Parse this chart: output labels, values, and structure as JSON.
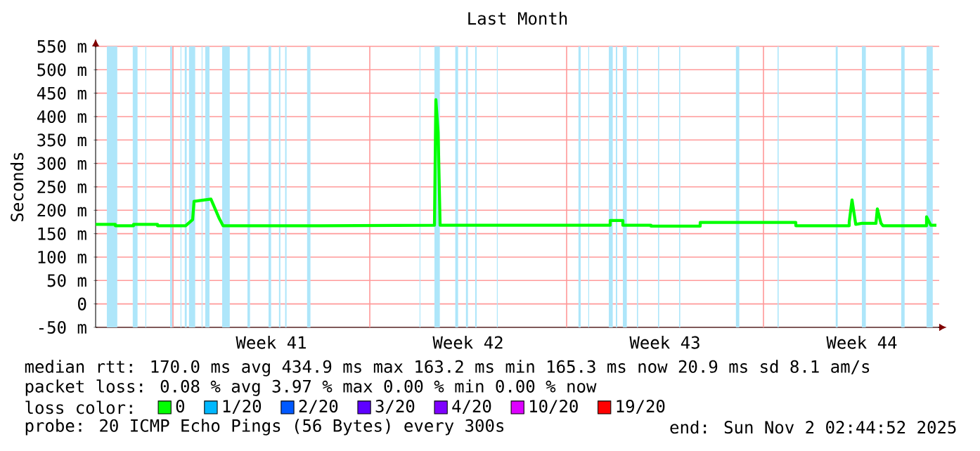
{
  "chart_data": {
    "type": "line",
    "title": "Last Month",
    "ylabel": "Seconds",
    "legend_title": "loss color:",
    "legend": "bottom",
    "grid": true,
    "xlim": [
      "2025-10-03T06:00",
      "2025-11-02T06:00"
    ],
    "ylim": [
      -50,
      550
    ],
    "xticks": [
      {
        "value": "2025-10-06T00:00",
        "label": null
      },
      {
        "value": "2025-10-09T12:00",
        "label": "Week 41"
      },
      {
        "value": "2025-10-13T00:00",
        "label": null
      },
      {
        "value": "2025-10-16T12:00",
        "label": "Week 42"
      },
      {
        "value": "2025-10-20T00:00",
        "label": null
      },
      {
        "value": "2025-10-23T12:00",
        "label": "Week 43"
      },
      {
        "value": "2025-10-27T00:00",
        "label": null
      },
      {
        "value": "2025-10-30T12:00",
        "label": "Week 44"
      }
    ],
    "yticks": [
      {
        "value": -50,
        "label": "-50 m"
      },
      0,
      {
        "value": 50,
        "label": "50 m"
      },
      {
        "value": 100,
        "label": "100 m"
      },
      {
        "value": 150,
        "label": "150 m"
      },
      {
        "value": 200,
        "label": "200 m"
      },
      {
        "value": 250,
        "label": "250 m"
      },
      {
        "value": 300,
        "label": "300 m"
      },
      {
        "value": 350,
        "label": "350 m"
      },
      {
        "value": 400,
        "label": "400 m"
      },
      {
        "value": 450,
        "label": "450 m"
      },
      {
        "value": 500,
        "label": "500 m"
      },
      {
        "value": 550,
        "label": "550 m"
      }
    ],
    "series": [
      {
        "name": "0",
        "color": "#00ff00",
        "x": [
          "2025-10-03T06:00",
          "2025-10-03T22:48",
          "2025-10-03T22:48",
          "2025-10-04T14:24",
          "2025-10-04T14:24",
          "2025-10-05T10:48",
          "2025-10-05T10:48",
          "2025-10-06T10:48",
          "2025-10-06T16:48",
          "2025-10-06T18:00",
          "2025-10-07T08:24",
          "2025-10-07T15:36",
          "2025-10-07T18:45",
          "2025-10-11T06:00",
          "2025-10-15T07:12",
          "2025-10-15T08:24",
          "2025-10-15T10:20",
          "2025-10-15T12:00",
          "2025-10-18T06:00",
          "2025-10-21T13:12",
          "2025-10-21T13:12",
          "2025-10-22T00:00",
          "2025-10-22T00:00",
          "2025-10-23T00:00",
          "2025-10-23T00:00",
          "2025-10-24T18:00",
          "2025-10-24T18:00",
          "2025-10-28T03:36",
          "2025-10-28T03:36",
          "2025-10-30T01:12",
          "2025-10-30T01:12",
          "2025-10-30T03:36",
          "2025-10-30T06:45",
          "2025-10-30T12:00",
          "2025-10-31T00:00",
          "2025-10-31T01:12",
          "2025-10-31T04:20",
          "2025-10-31T06:00",
          "2025-11-01T19:12",
          "2025-11-01T19:12",
          "2025-11-01T22:48",
          "2025-11-02T03:36"
        ],
        "values": [
          170,
          170,
          167,
          167,
          170,
          170,
          167,
          167,
          180,
          219,
          224,
          182,
          167,
          167,
          168,
          436,
          366,
          168,
          168,
          168,
          178,
          178,
          168,
          168,
          166,
          166,
          174,
          174,
          167,
          167,
          175,
          222,
          170,
          172,
          172,
          203,
          172,
          167,
          167,
          186,
          168,
          168
        ]
      },
      {
        "name": "1/20",
        "color": "#00b8ff",
        "values": [
          null
        ]
      },
      {
        "name": "2/20",
        "color": "#0059ff",
        "values": [
          null
        ]
      },
      {
        "name": "3/20",
        "color": "#5e00ff",
        "values": [
          null
        ]
      },
      {
        "name": "4/20",
        "color": "#7e00ff",
        "values": [
          null
        ]
      },
      {
        "name": "10/20",
        "color": "#dd00ff",
        "values": [
          null
        ]
      },
      {
        "name": "19/20",
        "color": "#ff0000",
        "values": [
          null
        ]
      }
    ],
    "bands": [
      {
        "axis": "x",
        "from": "2025-10-03T15:36",
        "to": "2025-10-04T00:29",
        "color": "#aee6fa"
      },
      {
        "axis": "x",
        "from": "2025-10-04T13:41",
        "to": "2025-10-04T17:46",
        "color": "#aee6fa"
      },
      {
        "axis": "x",
        "from": "2025-10-05T00:29",
        "to": "2025-10-05T01:12",
        "color": "#aee6fa"
      },
      {
        "axis": "x",
        "from": "2025-10-05T21:36",
        "to": "2025-10-05T23:17",
        "color": "#aee6fa"
      },
      {
        "axis": "x",
        "from": "2025-10-06T06:29",
        "to": "2025-10-06T07:12",
        "color": "#aee6fa"
      },
      {
        "axis": "x",
        "from": "2025-10-06T10:05",
        "to": "2025-10-06T11:46",
        "color": "#aee6fa"
      },
      {
        "axis": "x",
        "from": "2025-10-06T13:41",
        "to": "2025-10-06T18:58",
        "color": "#aee6fa"
      },
      {
        "axis": "x",
        "from": "2025-10-07T00:29",
        "to": "2025-10-07T01:12",
        "color": "#aee6fa"
      },
      {
        "axis": "x",
        "from": "2025-10-07T03:36",
        "to": "2025-10-07T07:12",
        "color": "#aee6fa"
      },
      {
        "axis": "x",
        "from": "2025-10-07T18:00",
        "to": "2025-10-08T00:29",
        "color": "#aee6fa"
      },
      {
        "axis": "x",
        "from": "2025-10-08T15:36",
        "to": "2025-10-08T17:46",
        "color": "#aee6fa"
      },
      {
        "axis": "x",
        "from": "2025-10-09T09:36",
        "to": "2025-10-09T11:46",
        "color": "#aee6fa"
      },
      {
        "axis": "x",
        "from": "2025-10-09T18:29",
        "to": "2025-10-09T19:41",
        "color": "#aee6fa"
      },
      {
        "axis": "x",
        "from": "2025-10-09T23:46",
        "to": "2025-10-10T00:58",
        "color": "#aee6fa"
      },
      {
        "axis": "x",
        "from": "2025-10-10T18:29",
        "to": "2025-10-10T21:22",
        "color": "#aee6fa"
      },
      {
        "axis": "x",
        "from": "2025-10-14T18:29",
        "to": "2025-10-14T19:12",
        "color": "#aee6fa"
      },
      {
        "axis": "x",
        "from": "2025-10-15T07:12",
        "to": "2025-10-15T11:46",
        "color": "#aee6fa"
      },
      {
        "axis": "x",
        "from": "2025-10-16T00:58",
        "to": "2025-10-16T03:22",
        "color": "#aee6fa"
      },
      {
        "axis": "x",
        "from": "2025-10-16T10:05",
        "to": "2025-10-16T11:46",
        "color": "#aee6fa"
      },
      {
        "axis": "x",
        "from": "2025-10-16T18:00",
        "to": "2025-10-16T19:12",
        "color": "#aee6fa"
      },
      {
        "axis": "x",
        "from": "2025-10-17T12:29",
        "to": "2025-10-17T13:12",
        "color": "#aee6fa"
      },
      {
        "axis": "x",
        "from": "2025-10-20T10:05",
        "to": "2025-10-20T12:00",
        "color": "#aee6fa"
      },
      {
        "axis": "x",
        "from": "2025-10-20T18:29",
        "to": "2025-10-20T19:12",
        "color": "#aee6fa"
      },
      {
        "axis": "x",
        "from": "2025-10-21T12:00",
        "to": "2025-10-21T15:22",
        "color": "#aee6fa"
      },
      {
        "axis": "x",
        "from": "2025-10-21T18:00",
        "to": "2025-10-21T19:12",
        "color": "#aee6fa"
      },
      {
        "axis": "x",
        "from": "2025-10-22T00:00",
        "to": "2025-10-22T03:22",
        "color": "#aee6fa"
      },
      {
        "axis": "x",
        "from": "2025-10-22T12:00",
        "to": "2025-10-22T12:58",
        "color": "#aee6fa"
      },
      {
        "axis": "x",
        "from": "2025-10-23T06:00",
        "to": "2025-10-23T06:58",
        "color": "#aee6fa"
      },
      {
        "axis": "x",
        "from": "2025-10-24T00:00",
        "to": "2025-10-24T00:58",
        "color": "#aee6fa"
      },
      {
        "axis": "x",
        "from": "2025-10-26T00:29",
        "to": "2025-10-26T03:22",
        "color": "#aee6fa"
      },
      {
        "axis": "x",
        "from": "2025-10-27T12:00",
        "to": "2025-10-27T12:58",
        "color": "#aee6fa"
      },
      {
        "axis": "x",
        "from": "2025-10-29T13:41",
        "to": "2025-10-29T15:22",
        "color": "#aee6fa"
      },
      {
        "axis": "x",
        "from": "2025-10-30T12:00",
        "to": "2025-10-30T15:22",
        "color": "#aee6fa"
      },
      {
        "axis": "x",
        "from": "2025-10-31T21:36",
        "to": "2025-11-01T00:29",
        "color": "#aee6fa"
      },
      {
        "axis": "x",
        "from": "2025-11-01T19:12",
        "to": "2025-11-02T00:29",
        "color": "#aee6fa"
      }
    ],
    "annotations": [
      "median rtt:  170.0 ms avg  434.9 ms max  163.2 ms min  165.3 ms now  20.9 ms sd  8.1   am/s",
      "packet loss: 0.08 % avg  3.97 % max  0.00 % min  0.00 % now",
      "probe:        20 ICMP Echo Pings (56 Bytes) every 300s",
      "end: Sun Nov  2 02:44:52 2025"
    ]
  }
}
